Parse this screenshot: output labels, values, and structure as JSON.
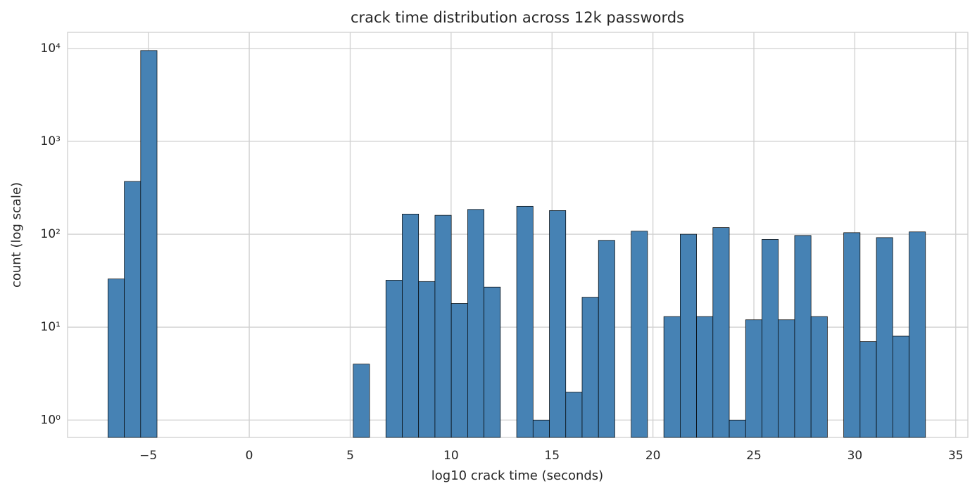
{
  "chart_data": {
    "type": "histogram",
    "title": "crack time distribution across 12k passwords",
    "x_label": "log10 crack time (seconds)",
    "y_label": "count (log scale)",
    "bins": [
      -7,
      -6.19,
      -5.38,
      -4.57,
      -3.76,
      -2.95,
      -2.14,
      -1.33,
      -0.52,
      0.29,
      1.1,
      1.91,
      2.72,
      3.53,
      4.34,
      5.15,
      5.96,
      6.77,
      7.58,
      8.39,
      9.2,
      10.01,
      10.82,
      11.63,
      12.44,
      13.25,
      14.06,
      14.87,
      15.68,
      16.49,
      17.3,
      18.11,
      18.92,
      19.73,
      20.54,
      21.35,
      22.16,
      22.97,
      23.78,
      24.59,
      25.4,
      26.21,
      27.02,
      27.83,
      28.64,
      29.45,
      30.26,
      31.07,
      31.88,
      32.69,
      33.5
    ],
    "values": [
      33,
      370,
      9500,
      0,
      0,
      0,
      0,
      0,
      0,
      0,
      0,
      0,
      0,
      0,
      0,
      4,
      0,
      32,
      165,
      31,
      160,
      18,
      185,
      27,
      0,
      200,
      1,
      180,
      2,
      21,
      86,
      0,
      108,
      0,
      13,
      100,
      13,
      118,
      1,
      12,
      88,
      12,
      97,
      13,
      0,
      104,
      7,
      92,
      8,
      106
    ],
    "color": "#4682b4",
    "edge_color": "#000000",
    "y_scale": "log",
    "grid": true,
    "xlim": [
      -9,
      35.6
    ],
    "xticks": [
      {
        "value": -5,
        "label": "−5"
      },
      0,
      5,
      10,
      15,
      20,
      25,
      30,
      35
    ],
    "ylim": [
      0.65,
      14900
    ],
    "yticks": [
      {
        "value": 1,
        "label": "10⁰"
      },
      {
        "value": 10,
        "label": "10¹"
      },
      {
        "value": 100,
        "label": "10²"
      },
      {
        "value": 1000,
        "label": "10³"
      },
      {
        "value": 10000,
        "label": "10⁴"
      }
    ]
  }
}
